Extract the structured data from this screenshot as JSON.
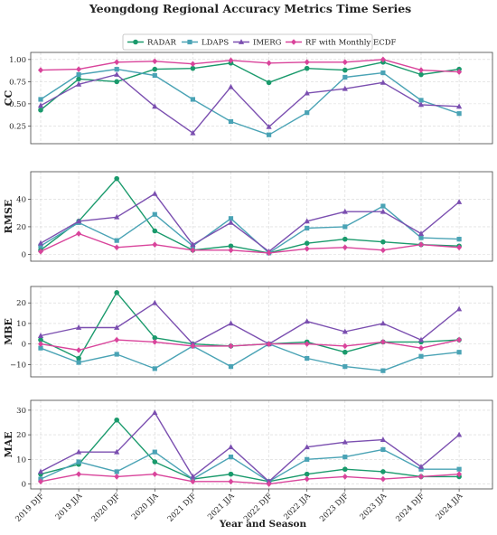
{
  "chart_data": {
    "type": "line",
    "title": "Yeongdong Regional Accuracy Metrics Time Series",
    "xlabel": "Year and Season",
    "categories": [
      "2019 DJF",
      "2019 JJA",
      "2020 DJF",
      "2020 JJA",
      "2021 DJF",
      "2021 JJA",
      "2022 DJF",
      "2022 JJA",
      "2023 DJF",
      "2023 JJA",
      "2024 DJF",
      "2024 JJA"
    ],
    "legend": {
      "placement": "top-center",
      "entries": [
        {
          "name": "RADAR",
          "color": "#1a9a6c",
          "marker": "circle"
        },
        {
          "name": "LDAPS",
          "color": "#4aa3b5",
          "marker": "square"
        },
        {
          "name": "IMERG",
          "color": "#7b4fb0",
          "marker": "triangle"
        },
        {
          "name": "RF with Monthly ECDF",
          "color": "#d9449b",
          "marker": "diamond"
        }
      ]
    },
    "grid": true,
    "panels": [
      {
        "ylabel": "CC",
        "ylim": [
          0.05,
          1.08
        ],
        "yticks": [
          0.25,
          0.5,
          0.75,
          1.0
        ],
        "ytick_labels": [
          "0.25",
          "0.50",
          "0.75",
          "1.00"
        ],
        "series": [
          {
            "name": "RADAR",
            "values": [
              0.43,
              0.78,
              0.75,
              0.89,
              0.9,
              0.96,
              0.74,
              0.9,
              0.88,
              0.97,
              0.83,
              0.89
            ]
          },
          {
            "name": "LDAPS",
            "values": [
              0.55,
              0.83,
              0.89,
              0.82,
              0.55,
              0.3,
              0.15,
              0.4,
              0.8,
              0.85,
              0.54,
              0.39
            ]
          },
          {
            "name": "IMERG",
            "values": [
              0.48,
              0.72,
              0.83,
              0.47,
              0.17,
              0.69,
              0.24,
              0.62,
              0.67,
              0.74,
              0.49,
              0.47
            ]
          },
          {
            "name": "RF with Monthly ECDF",
            "values": [
              0.88,
              0.89,
              0.97,
              0.98,
              0.95,
              0.99,
              0.96,
              0.97,
              0.97,
              1.0,
              0.88,
              0.86
            ]
          }
        ]
      },
      {
        "ylabel": "RMSE",
        "ylim": [
          -5,
          60
        ],
        "yticks": [
          0,
          20,
          40
        ],
        "ytick_labels": [
          "0",
          "20",
          "40"
        ],
        "series": [
          {
            "name": "RADAR",
            "values": [
              3,
              24,
              55,
              17,
              3,
              6,
              1,
              8,
              11,
              9,
              7,
              6
            ]
          },
          {
            "name": "LDAPS",
            "values": [
              6,
              23,
              10,
              29,
              6,
              26,
              1,
              19,
              20,
              35,
              12,
              11
            ]
          },
          {
            "name": "IMERG",
            "values": [
              8,
              24,
              27,
              44,
              7,
              23,
              2,
              24,
              31,
              31,
              15,
              38
            ]
          },
          {
            "name": "RF with Monthly ECDF",
            "values": [
              2,
              15,
              5,
              7,
              3,
              3,
              1,
              4,
              5,
              3,
              7,
              5
            ]
          }
        ]
      },
      {
        "ylabel": "MBE",
        "ylim": [
          -16,
          28
        ],
        "yticks": [
          -10,
          0,
          10,
          20
        ],
        "ytick_labels": [
          "−10",
          "0",
          "10",
          "20"
        ],
        "series": [
          {
            "name": "RADAR",
            "values": [
              2,
              -7,
              25,
              3,
              0,
              -1,
              0,
              1,
              -4,
              1,
              1,
              2
            ]
          },
          {
            "name": "LDAPS",
            "values": [
              -2,
              -9,
              -5,
              -12,
              -1,
              -11,
              0,
              -7,
              -11,
              -13,
              -6,
              -4
            ]
          },
          {
            "name": "IMERG",
            "values": [
              4,
              8,
              8,
              20,
              0,
              10,
              0,
              11,
              6,
              10,
              2,
              17
            ]
          },
          {
            "name": "RF with Monthly ECDF",
            "values": [
              0,
              -3,
              2,
              1,
              -1,
              -1,
              0,
              0,
              -1,
              1,
              -2,
              2
            ]
          }
        ]
      },
      {
        "ylabel": "MAE",
        "ylim": [
          -2,
          34
        ],
        "yticks": [
          0,
          10,
          20,
          30
        ],
        "ytick_labels": [
          "0",
          "10",
          "20",
          "30"
        ],
        "series": [
          {
            "name": "RADAR",
            "values": [
              4,
              8,
              26,
              9,
              2,
              4,
              1,
              4,
              6,
              5,
              3,
              3
            ]
          },
          {
            "name": "LDAPS",
            "values": [
              2,
              9,
              5,
              13,
              2,
              11,
              1,
              10,
              11,
              14,
              6,
              6
            ]
          },
          {
            "name": "IMERG",
            "values": [
              5,
              13,
              13,
              29,
              3,
              15,
              1,
              15,
              17,
              18,
              7,
              20
            ]
          },
          {
            "name": "RF with Monthly ECDF",
            "values": [
              1,
              4,
              3,
              4,
              1,
              1,
              0,
              2,
              3,
              2,
              3,
              4
            ]
          }
        ]
      }
    ]
  }
}
